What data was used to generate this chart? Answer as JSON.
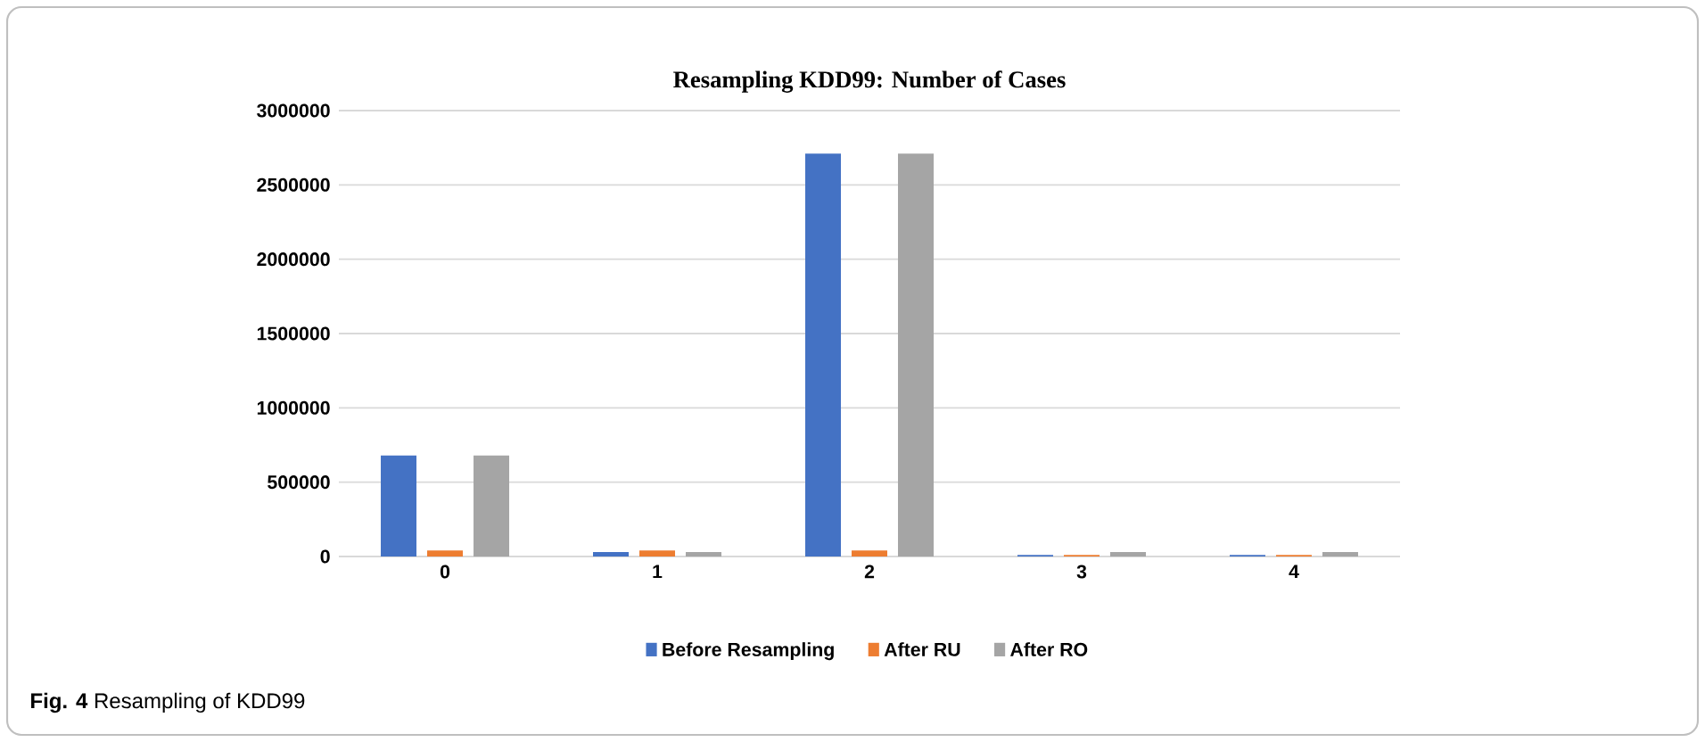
{
  "chart_data": {
    "type": "bar",
    "title": "Resampling KDD99: Number of Cases",
    "categories": [
      "0",
      "1",
      "2",
      "3",
      "4"
    ],
    "series": [
      {
        "name": "Before Resampling",
        "color": "#4472c4",
        "values": [
          680000,
          30000,
          2710000,
          10000,
          10000
        ]
      },
      {
        "name": "After RU",
        "color": "#ed7d31",
        "values": [
          40000,
          40000,
          40000,
          10000,
          10000
        ]
      },
      {
        "name": "After RO",
        "color": "#a5a5a5",
        "values": [
          680000,
          30000,
          2710000,
          30000,
          30000
        ]
      }
    ],
    "ylim": [
      0,
      3000000
    ],
    "yticks": [
      0,
      500000,
      1000000,
      1500000,
      2000000,
      2500000,
      3000000
    ],
    "grid": "y",
    "legend": "bottom",
    "annotations": [
      "**Fig. 4** Resampling of KDD99"
    ]
  }
}
